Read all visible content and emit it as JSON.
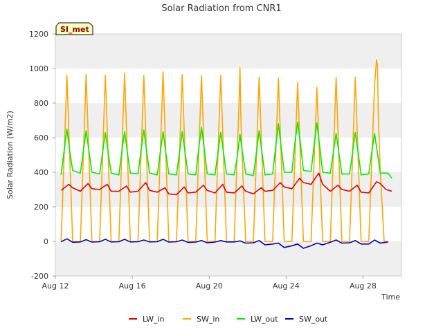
{
  "chart_data": {
    "type": "line",
    "title": "Solar Radiation from CNR1",
    "xlabel": "Time",
    "ylabel": "Solar Radiation (W/m2)",
    "badge": "SI_met",
    "ylim": [
      -200,
      1200
    ],
    "yticks": [
      -200,
      0,
      200,
      400,
      600,
      800,
      1000,
      1200
    ],
    "xlim": [
      12.0,
      30.0
    ],
    "xticks": [
      {
        "value": 12,
        "label": "Aug 12"
      },
      {
        "value": 16,
        "label": "Aug 16"
      },
      {
        "value": 20,
        "label": "Aug 20"
      },
      {
        "value": 24,
        "label": "Aug 24"
      },
      {
        "value": 28,
        "label": "Aug 28"
      }
    ],
    "x_unit": "day of August",
    "grid": "horizontal bands",
    "legend_position": "bottom",
    "colors": {
      "LW_in": "#dd0000",
      "SW_in": "#ffa500",
      "LW_out": "#00ee00",
      "SW_out": "#0000bb",
      "band": "#efefef",
      "badge_bg": "#ffffc0"
    },
    "series": [
      {
        "name": "LW_in",
        "x": [
          12.3,
          12.7,
          12.9,
          13.3,
          13.7,
          13.9,
          14.3,
          14.7,
          14.9,
          15.3,
          15.7,
          15.9,
          16.3,
          16.7,
          16.9,
          17.3,
          17.7,
          17.9,
          18.3,
          18.7,
          18.9,
          19.3,
          19.7,
          19.9,
          20.3,
          20.7,
          20.9,
          21.3,
          21.7,
          21.9,
          22.3,
          22.7,
          22.9,
          23.3,
          23.7,
          23.9,
          24.3,
          24.7,
          24.9,
          25.3,
          25.7,
          25.9,
          26.3,
          26.7,
          26.9,
          27.3,
          27.7,
          27.9,
          28.3,
          28.7,
          28.9,
          29.2,
          29.5
        ],
        "values": [
          295,
          330,
          310,
          290,
          335,
          305,
          300,
          330,
          290,
          290,
          320,
          285,
          290,
          340,
          295,
          285,
          310,
          275,
          270,
          315,
          280,
          285,
          325,
          295,
          280,
          330,
          285,
          280,
          320,
          290,
          275,
          310,
          290,
          295,
          340,
          315,
          305,
          365,
          340,
          330,
          395,
          330,
          290,
          325,
          300,
          290,
          325,
          285,
          280,
          345,
          335,
          300,
          290
        ]
      },
      {
        "name": "SW_in",
        "x": [
          12.3,
          12.45,
          12.6,
          12.75,
          12.9,
          13.3,
          13.45,
          13.6,
          13.75,
          13.9,
          14.3,
          14.45,
          14.6,
          14.75,
          14.9,
          15.3,
          15.45,
          15.6,
          15.75,
          15.9,
          16.3,
          16.45,
          16.6,
          16.75,
          16.9,
          17.3,
          17.45,
          17.6,
          17.75,
          17.9,
          18.3,
          18.45,
          18.6,
          18.75,
          18.9,
          19.3,
          19.45,
          19.6,
          19.75,
          19.9,
          20.3,
          20.45,
          20.6,
          20.75,
          20.9,
          21.3,
          21.45,
          21.55,
          21.6,
          21.65,
          21.75,
          21.9,
          22.3,
          22.45,
          22.6,
          22.75,
          22.9,
          23.3,
          23.45,
          23.6,
          23.75,
          23.9,
          24.3,
          24.45,
          24.6,
          24.75,
          24.9,
          25.3,
          25.45,
          25.6,
          25.75,
          25.9,
          26.3,
          26.45,
          26.6,
          26.75,
          26.9,
          27.3,
          27.45,
          27.6,
          27.75,
          27.9,
          28.3,
          28.45,
          28.6,
          28.7,
          28.75,
          28.8,
          28.9,
          29.1,
          29.3
        ],
        "values": [
          0,
          480,
          960,
          480,
          0,
          0,
          480,
          965,
          480,
          0,
          0,
          480,
          960,
          480,
          0,
          0,
          485,
          975,
          485,
          0,
          0,
          480,
          960,
          480,
          0,
          0,
          490,
          980,
          490,
          0,
          0,
          480,
          965,
          480,
          0,
          0,
          480,
          960,
          480,
          0,
          0,
          480,
          960,
          480,
          0,
          0,
          480,
          800,
          1005,
          700,
          400,
          0,
          0,
          470,
          950,
          470,
          0,
          0,
          470,
          945,
          470,
          0,
          0,
          460,
          920,
          460,
          0,
          0,
          445,
          890,
          445,
          0,
          0,
          475,
          950,
          475,
          0,
          0,
          475,
          950,
          475,
          0,
          0,
          450,
          900,
          1050,
          1020,
          700,
          400,
          0,
          0
        ]
      },
      {
        "name": "LW_out",
        "x": [
          12.3,
          12.45,
          12.6,
          12.75,
          12.9,
          13.3,
          13.45,
          13.6,
          13.75,
          13.9,
          14.3,
          14.45,
          14.6,
          14.75,
          14.9,
          15.3,
          15.45,
          15.6,
          15.75,
          15.9,
          16.3,
          16.45,
          16.6,
          16.75,
          16.9,
          17.3,
          17.45,
          17.6,
          17.75,
          17.9,
          18.3,
          18.45,
          18.6,
          18.75,
          18.9,
          19.3,
          19.45,
          19.6,
          19.75,
          19.9,
          20.3,
          20.45,
          20.6,
          20.75,
          20.9,
          21.3,
          21.45,
          21.6,
          21.75,
          21.9,
          22.3,
          22.45,
          22.6,
          22.75,
          22.9,
          23.3,
          23.45,
          23.6,
          23.75,
          23.9,
          24.3,
          24.45,
          24.6,
          24.75,
          24.9,
          25.3,
          25.45,
          25.6,
          25.75,
          25.9,
          26.3,
          26.45,
          26.6,
          26.75,
          26.9,
          27.3,
          27.45,
          27.6,
          27.75,
          27.9,
          28.3,
          28.45,
          28.6,
          28.75,
          28.9,
          29.3,
          29.5
        ],
        "values": [
          385,
          520,
          650,
          520,
          410,
          395,
          520,
          640,
          520,
          400,
          390,
          510,
          630,
          510,
          395,
          385,
          510,
          635,
          510,
          395,
          390,
          520,
          645,
          520,
          395,
          385,
          510,
          635,
          510,
          390,
          385,
          510,
          635,
          510,
          390,
          385,
          530,
          660,
          530,
          390,
          385,
          510,
          630,
          510,
          390,
          385,
          480,
          620,
          500,
          390,
          380,
          510,
          640,
          510,
          385,
          390,
          540,
          680,
          540,
          400,
          400,
          560,
          690,
          560,
          410,
          405,
          550,
          685,
          550,
          400,
          395,
          510,
          625,
          510,
          390,
          390,
          510,
          630,
          510,
          385,
          390,
          510,
          625,
          510,
          395,
          395,
          365
        ]
      },
      {
        "name": "SW_out",
        "x": [
          12.3,
          12.6,
          12.9,
          13.3,
          13.6,
          13.9,
          14.3,
          14.6,
          14.9,
          15.3,
          15.6,
          15.9,
          16.3,
          16.6,
          16.9,
          17.3,
          17.6,
          17.9,
          18.3,
          18.6,
          18.9,
          19.3,
          19.6,
          19.9,
          20.3,
          20.6,
          20.9,
          21.3,
          21.6,
          21.9,
          22.3,
          22.6,
          22.9,
          23.3,
          23.6,
          23.9,
          24.3,
          24.6,
          24.9,
          25.3,
          25.6,
          25.9,
          26.3,
          26.6,
          26.9,
          27.3,
          27.6,
          27.9,
          28.3,
          28.6,
          28.9,
          29.3
        ],
        "values": [
          -2,
          15,
          -5,
          -3,
          10,
          -4,
          -2,
          12,
          -3,
          -2,
          12,
          -3,
          -2,
          8,
          -3,
          -2,
          12,
          -4,
          -2,
          8,
          -6,
          -4,
          5,
          -8,
          -4,
          5,
          -3,
          -3,
          3,
          -10,
          -8,
          5,
          -20,
          -15,
          -10,
          -35,
          -25,
          -15,
          -40,
          -25,
          -10,
          -20,
          -5,
          8,
          -10,
          -8,
          5,
          -15,
          -15,
          8,
          -10,
          -3
        ]
      }
    ]
  }
}
